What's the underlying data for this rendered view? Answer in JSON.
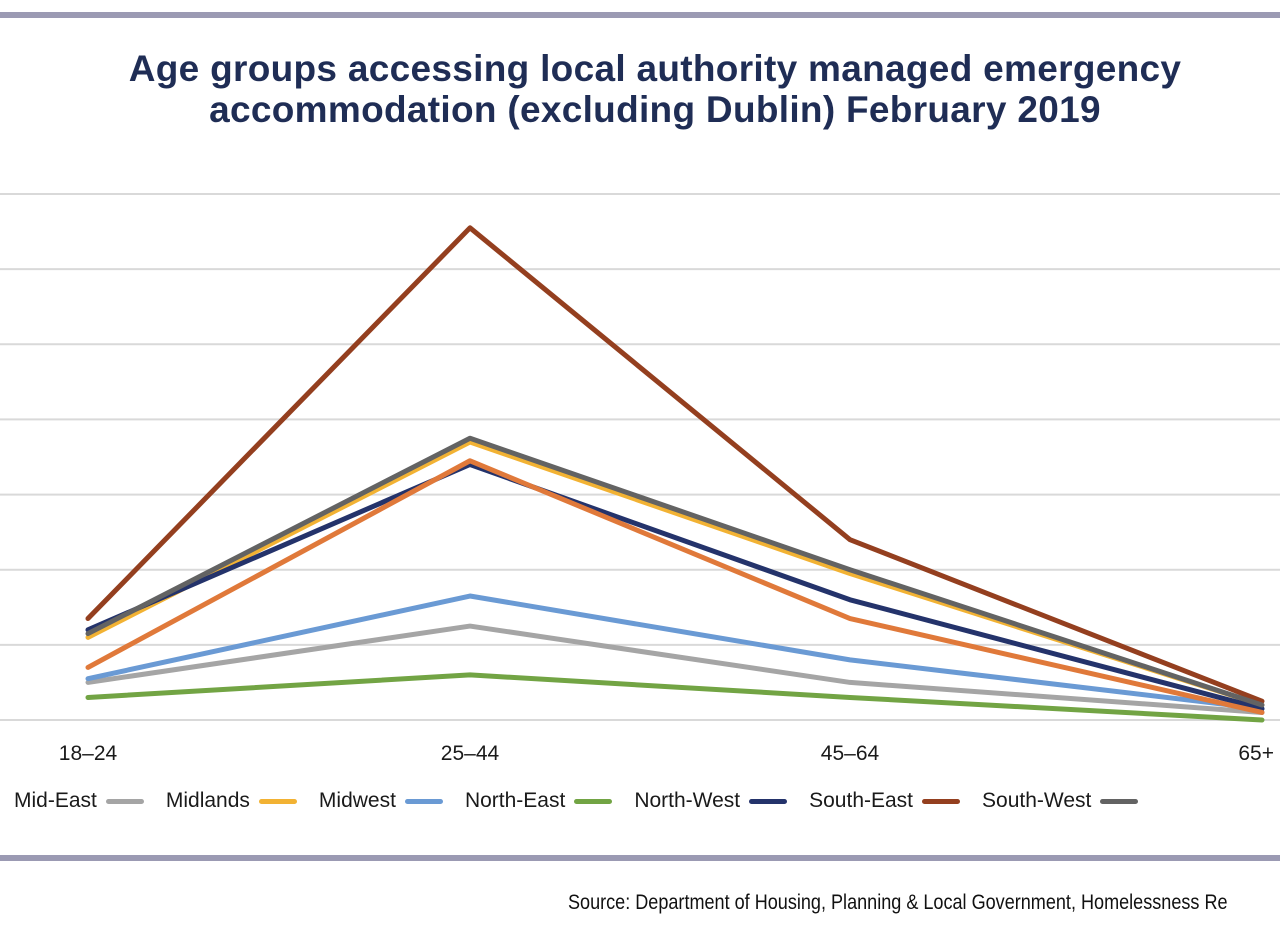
{
  "chart_data": {
    "type": "line",
    "title": "Age groups accessing local authority managed emergency accommodation (excluding Dublin) February 2019",
    "categories": [
      "18–24",
      "25–44",
      "45–64",
      "65+"
    ],
    "ylim": [
      0,
      140
    ],
    "grid": true,
    "legend_position": "bottom",
    "series": [
      {
        "name": "Mid-East",
        "color": "#a5a5a5",
        "values": [
          10,
          25,
          10,
          2
        ]
      },
      {
        "name": "Midlands",
        "color": "#f2b233",
        "values": [
          22,
          74,
          39,
          4
        ]
      },
      {
        "name": "Midwest",
        "color": "#6a9ad4",
        "values": [
          11,
          33,
          16,
          3
        ]
      },
      {
        "name": "North-East",
        "color": "#72a444",
        "values": [
          6,
          12,
          6,
          0
        ]
      },
      {
        "name": "North-West",
        "color": "#24336b",
        "values": [
          24,
          68,
          32,
          3
        ]
      },
      {
        "name": "South-East",
        "color": "#943f1f",
        "values": [
          27,
          131,
          48,
          5
        ]
      },
      {
        "name": "South-West",
        "color": "#636363",
        "values": [
          23,
          75,
          40,
          4
        ]
      },
      {
        "name": "",
        "color": "#e0793a",
        "values": [
          14,
          69,
          27,
          2
        ]
      }
    ]
  },
  "source": "Source: Department of Housing, Planning & Local Government, Homelessness Re"
}
